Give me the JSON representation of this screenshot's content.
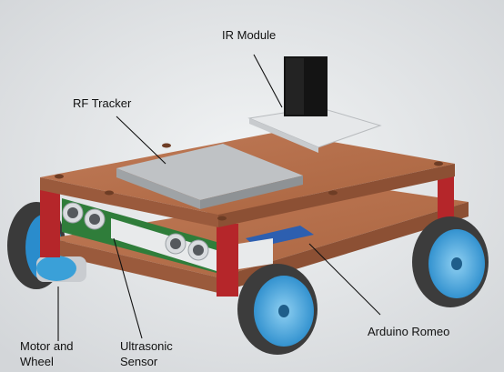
{
  "labels": {
    "ir_module": "IR Module",
    "rf_tracker": "RF Tracker",
    "motor_line1": "Motor and",
    "motor_line2": "Wheel",
    "ultrasonic_line1": "Ultrasonic",
    "ultrasonic_line2": "Sensor",
    "arduino": "Arduino Romeo"
  },
  "colors": {
    "background": "#e6e8ea",
    "wood": "#b8714e",
    "wood_side": "#9a5a3c",
    "support": "#b5262a",
    "pcb": "#2f7d3a",
    "wheel_tire": "#3c3c3c",
    "wheel_hub": "#3aa0d8",
    "motor": "#c9ccd0",
    "tracker": "#b9bcbf",
    "ir_body": "#141414",
    "connector": "#eceeef",
    "leader": "#111111"
  }
}
